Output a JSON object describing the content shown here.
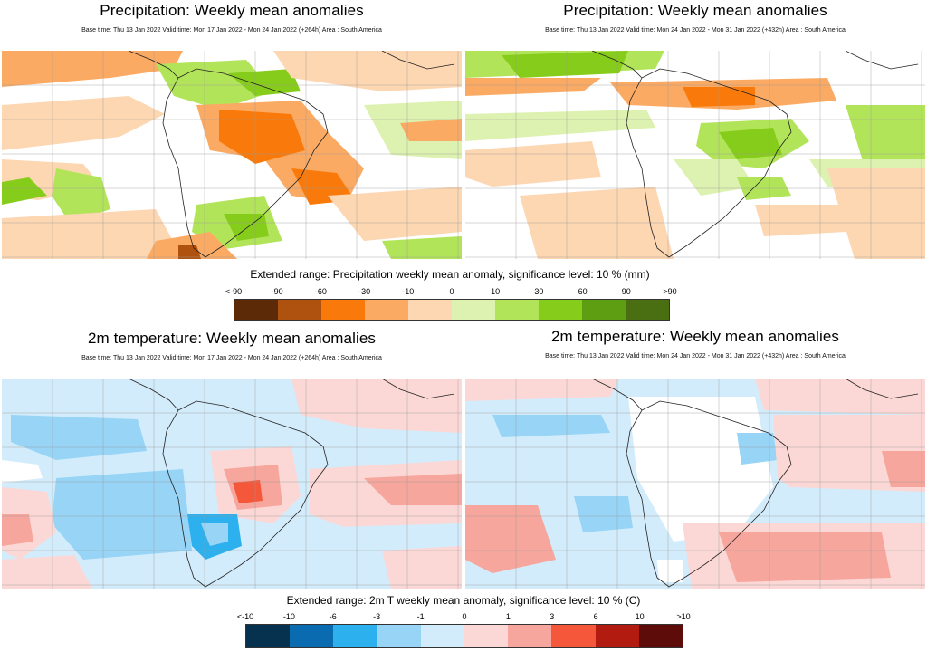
{
  "panels": {
    "precip_week1": {
      "title": "Precipitation: Weekly mean anomalies",
      "subtitle": "Base time: Thu 13 Jan 2022 Valid time: Mon 17 Jan 2022 - Mon 24 Jan 2022 (+264h) Area : South America"
    },
    "precip_week2": {
      "title": "Precipitation: Weekly mean anomalies",
      "subtitle": "Base time: Thu 13 Jan 2022 Valid time: Mon 24 Jan 2022 - Mon 31 Jan 2022 (+432h) Area : South America"
    },
    "temp_week1": {
      "title": "2m temperature: Weekly mean anomalies",
      "subtitle": "Base time: Thu 13 Jan 2022 Valid time: Mon 17 Jan 2022 - Mon 24 Jan 2022 (+264h) Area : South America"
    },
    "temp_week2": {
      "title": "2m temperature: Weekly mean anomalies",
      "subtitle": "Base time: Thu 13 Jan 2022 Valid time: Mon 24 Jan 2022 - Mon 31 Jan 2022 (+432h) Area : South America"
    }
  },
  "legends": {
    "precip": {
      "caption": "Extended range: Precipitation weekly mean anomaly, significance level: 10 % (mm)",
      "ticks": [
        "<-90",
        "-90",
        "-60",
        "-30",
        "-10",
        "0",
        "10",
        "30",
        "60",
        "90",
        ">90"
      ],
      "colors": [
        "#5c2a07",
        "#b0520f",
        "#f97a0a",
        "#fbaa63",
        "#fdd6b2",
        "#ddf2b0",
        "#b2e45a",
        "#86cc1a",
        "#5e9e13",
        "#4a6e12"
      ]
    },
    "temp": {
      "caption": "Extended range: 2m T weekly mean anomaly, significance level: 10 % (C)",
      "ticks": [
        "<-10",
        "-10",
        "-6",
        "-3",
        "-1",
        "0",
        "1",
        "3",
        "6",
        "10",
        ">10"
      ],
      "colors": [
        "#07324f",
        "#0a6bb0",
        "#2cb0ee",
        "#97d4f6",
        "#d3ecfb",
        "#fbd8d6",
        "#f6a69c",
        "#f4573a",
        "#b21c10",
        "#5e0c0a"
      ]
    }
  }
}
